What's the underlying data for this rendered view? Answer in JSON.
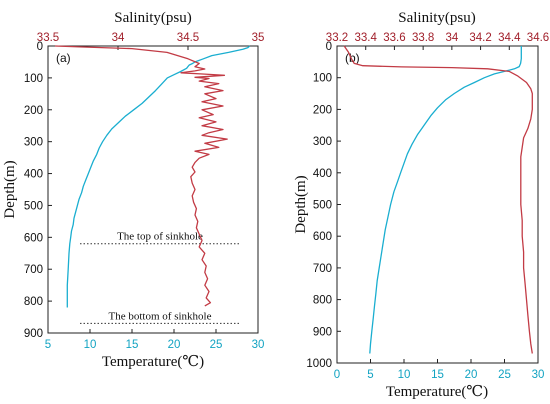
{
  "chart_data": [
    {
      "type": "line",
      "panel_label": "(a)",
      "top_axis_label": "Salinity(psu)",
      "bottom_axis_label": "Temperature(℃)",
      "y_axis_label": "Depth(m)",
      "salinity_range": [
        33.5,
        35
      ],
      "salinity_ticks": [
        "33.5",
        "34",
        "34.5",
        "35"
      ],
      "temperature_range": [
        5,
        30
      ],
      "temperature_ticks": [
        "5",
        "10",
        "15",
        "20",
        "25",
        "30"
      ],
      "depth_range": [
        0,
        900
      ],
      "depth_ticks": [
        "0",
        "100",
        "200",
        "300",
        "400",
        "500",
        "600",
        "700",
        "800",
        "900"
      ],
      "colors": {
        "salinity": "#c23b45",
        "temperature": "#1aaed0",
        "salinity_ticks": "#a11f2a",
        "temperature_ticks": "#12a3c2"
      },
      "annotations": [
        {
          "text": "The top of sinkhole",
          "depth": 620
        },
        {
          "text": "The bottom of sinkhole",
          "depth": 870
        }
      ],
      "series": [
        {
          "key": "temperature",
          "points": [
            [
              29.0,
              0
            ],
            [
              28.8,
              5
            ],
            [
              28.2,
              10
            ],
            [
              26.5,
              20
            ],
            [
              24.5,
              30
            ],
            [
              23.5,
              40
            ],
            [
              22.5,
              50
            ],
            [
              22.2,
              55
            ],
            [
              21.8,
              60
            ],
            [
              21.5,
              70
            ],
            [
              20.8,
              80
            ],
            [
              20.0,
              90
            ],
            [
              19.2,
              100
            ],
            [
              18.5,
              120
            ],
            [
              17.8,
              140
            ],
            [
              17.0,
              160
            ],
            [
              16.2,
              180
            ],
            [
              15.2,
              200
            ],
            [
              14.2,
              220
            ],
            [
              13.4,
              240
            ],
            [
              12.6,
              260
            ],
            [
              12.0,
              280
            ],
            [
              11.5,
              300
            ],
            [
              11.1,
              320
            ],
            [
              10.8,
              340
            ],
            [
              10.4,
              360
            ],
            [
              10.1,
              380
            ],
            [
              9.8,
              400
            ],
            [
              9.5,
              420
            ],
            [
              9.2,
              440
            ],
            [
              9.0,
              460
            ],
            [
              8.7,
              480
            ],
            [
              8.5,
              500
            ],
            [
              8.3,
              520
            ],
            [
              8.1,
              540
            ],
            [
              8.0,
              560
            ],
            [
              7.8,
              580
            ],
            [
              7.7,
              600
            ],
            [
              7.6,
              620
            ],
            [
              7.5,
              650
            ],
            [
              7.4,
              700
            ],
            [
              7.3,
              750
            ],
            [
              7.3,
              800
            ],
            [
              7.3,
              820
            ]
          ]
        },
        {
          "key": "salinity",
          "points": [
            [
              33.55,
              0
            ],
            [
              33.75,
              3
            ],
            [
              34.1,
              8
            ],
            [
              34.35,
              20
            ],
            [
              34.5,
              40
            ],
            [
              34.58,
              55
            ],
            [
              34.55,
              65
            ],
            [
              34.62,
              72
            ],
            [
              34.55,
              78
            ],
            [
              34.45,
              84
            ],
            [
              34.62,
              88
            ],
            [
              34.76,
              92
            ],
            [
              34.55,
              98
            ],
            [
              34.65,
              102
            ],
            [
              34.58,
              110
            ],
            [
              34.72,
              118
            ],
            [
              34.62,
              128
            ],
            [
              34.75,
              140
            ],
            [
              34.62,
              150
            ],
            [
              34.7,
              165
            ],
            [
              34.6,
              175
            ],
            [
              34.75,
              188
            ],
            [
              34.6,
              200
            ],
            [
              34.68,
              215
            ],
            [
              34.58,
              225
            ],
            [
              34.7,
              238
            ],
            [
              34.6,
              250
            ],
            [
              34.75,
              262
            ],
            [
              34.65,
              272
            ],
            [
              34.6,
              280
            ],
            [
              34.78,
              292
            ],
            [
              34.62,
              305
            ],
            [
              34.72,
              318
            ],
            [
              34.55,
              330
            ],
            [
              34.65,
              340
            ],
            [
              34.58,
              352
            ],
            [
              34.55,
              365
            ],
            [
              34.53,
              380
            ],
            [
              34.55,
              395
            ],
            [
              34.52,
              410
            ],
            [
              34.53,
              430
            ],
            [
              34.55,
              450
            ],
            [
              34.53,
              470
            ],
            [
              34.54,
              490
            ],
            [
              34.56,
              510
            ],
            [
              34.55,
              530
            ],
            [
              34.57,
              550
            ],
            [
              34.56,
              570
            ],
            [
              34.58,
              590
            ],
            [
              34.6,
              610
            ],
            [
              34.58,
              630
            ],
            [
              34.62,
              650
            ],
            [
              34.6,
              670
            ],
            [
              34.63,
              690
            ],
            [
              34.62,
              710
            ],
            [
              34.64,
              730
            ],
            [
              34.62,
              750
            ],
            [
              34.65,
              770
            ],
            [
              34.63,
              790
            ],
            [
              34.66,
              805
            ],
            [
              34.62,
              815
            ]
          ]
        }
      ]
    },
    {
      "type": "line",
      "panel_label": "(b)",
      "top_axis_label": "Salinity(psu)",
      "bottom_axis_label": "Temperature(℃)",
      "y_axis_label": "Depth(m)",
      "salinity_range": [
        33.2,
        34.6
      ],
      "salinity_ticks": [
        "33.2",
        "33.4",
        "33.6",
        "33.8",
        "34",
        "34.2",
        "34.4",
        "34.6"
      ],
      "temperature_range": [
        0,
        30
      ],
      "temperature_ticks": [
        "0",
        "5",
        "10",
        "15",
        "20",
        "25",
        "30"
      ],
      "depth_range": [
        0,
        1000
      ],
      "depth_ticks": [
        "0",
        "100",
        "200",
        "300",
        "400",
        "500",
        "600",
        "700",
        "800",
        "900",
        "1000"
      ],
      "colors": {
        "salinity": "#c23b45",
        "temperature": "#1aaed0",
        "salinity_ticks": "#a11f2a",
        "temperature_ticks": "#12a3c2"
      },
      "series": [
        {
          "key": "temperature",
          "points": [
            [
              27.5,
              0
            ],
            [
              27.5,
              20
            ],
            [
              27.5,
              40
            ],
            [
              27.4,
              55
            ],
            [
              27.2,
              65
            ],
            [
              26.5,
              72
            ],
            [
              25.0,
              80
            ],
            [
              23.5,
              88
            ],
            [
              22.0,
              100
            ],
            [
              20.5,
              115
            ],
            [
              19.0,
              130
            ],
            [
              17.5,
              150
            ],
            [
              16.2,
              170
            ],
            [
              15.0,
              195
            ],
            [
              14.0,
              220
            ],
            [
              13.0,
              250
            ],
            [
              12.0,
              280
            ],
            [
              11.2,
              310
            ],
            [
              10.5,
              340
            ],
            [
              10.0,
              370
            ],
            [
              9.5,
              400
            ],
            [
              9.0,
              430
            ],
            [
              8.5,
              460
            ],
            [
              8.0,
              500
            ],
            [
              7.6,
              540
            ],
            [
              7.2,
              580
            ],
            [
              6.9,
              620
            ],
            [
              6.6,
              660
            ],
            [
              6.3,
              700
            ],
            [
              6.0,
              740
            ],
            [
              5.8,
              780
            ],
            [
              5.6,
              820
            ],
            [
              5.4,
              860
            ],
            [
              5.2,
              900
            ],
            [
              5.0,
              940
            ],
            [
              4.9,
              970
            ]
          ]
        },
        {
          "key": "salinity",
          "points": [
            [
              33.25,
              0
            ],
            [
              33.28,
              20
            ],
            [
              33.3,
              40
            ],
            [
              33.32,
              55
            ],
            [
              33.38,
              62
            ],
            [
              33.65,
              66
            ],
            [
              34.0,
              68
            ],
            [
              34.25,
              72
            ],
            [
              34.4,
              80
            ],
            [
              34.46,
              95
            ],
            [
              34.52,
              115
            ],
            [
              34.55,
              135
            ],
            [
              34.56,
              150
            ],
            [
              34.56,
              175
            ],
            [
              34.56,
              200
            ],
            [
              34.55,
              230
            ],
            [
              34.53,
              260
            ],
            [
              34.5,
              290
            ],
            [
              34.49,
              320
            ],
            [
              34.48,
              350
            ],
            [
              34.48,
              400
            ],
            [
              34.48,
              450
            ],
            [
              34.48,
              500
            ],
            [
              34.49,
              550
            ],
            [
              34.49,
              600
            ],
            [
              34.5,
              650
            ],
            [
              34.5,
              700
            ],
            [
              34.51,
              750
            ],
            [
              34.52,
              800
            ],
            [
              34.53,
              850
            ],
            [
              34.54,
              900
            ],
            [
              34.55,
              940
            ],
            [
              34.56,
              970
            ]
          ]
        }
      ]
    }
  ]
}
